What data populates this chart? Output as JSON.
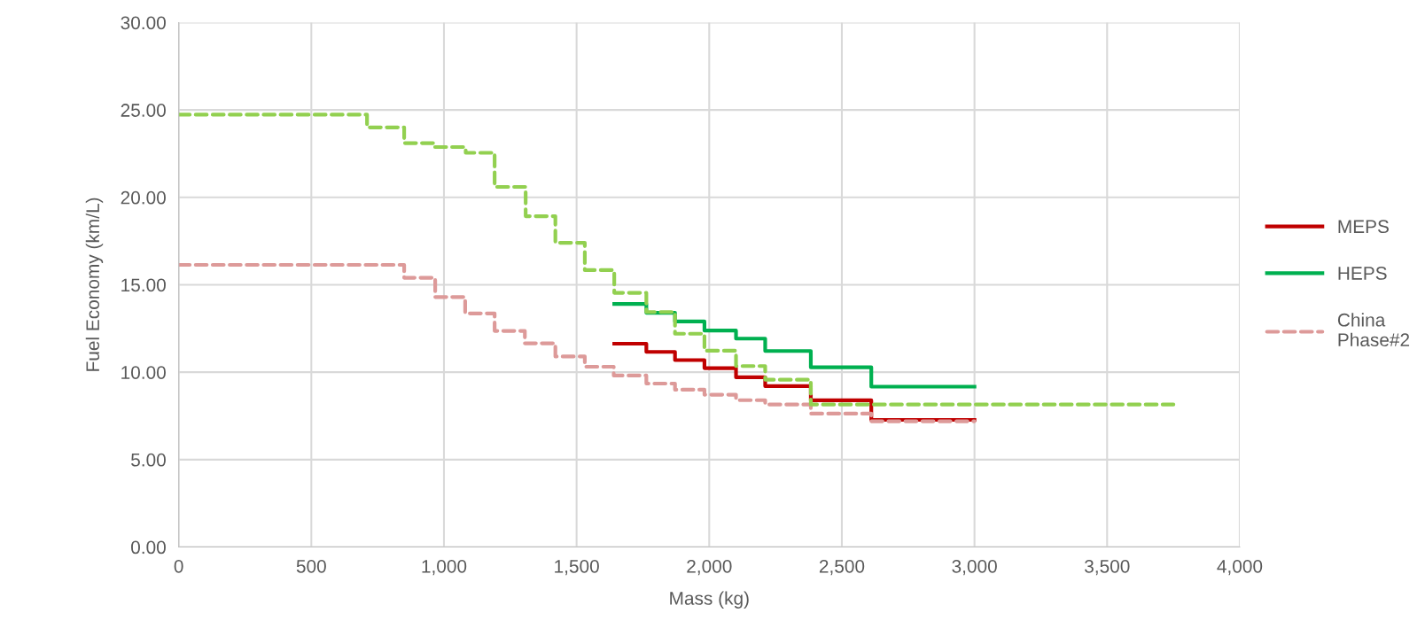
{
  "chart_data": {
    "type": "step",
    "xlabel": "Mass (kg)",
    "ylabel": "Fuel Economy (km/L)",
    "xlim": [
      0,
      4000
    ],
    "ylim": [
      0,
      30
    ],
    "xticks": [
      0,
      500,
      {
        "value": 1000,
        "label": "1,000"
      },
      {
        "value": 1500,
        "label": "1,500"
      },
      {
        "value": 2000,
        "label": "2,000"
      },
      {
        "value": 2500,
        "label": "2,500"
      },
      {
        "value": 3000,
        "label": "3,000"
      },
      {
        "value": 3500,
        "label": "3,500"
      },
      {
        "value": 4000,
        "label": "4,000"
      }
    ],
    "yticks": [
      {
        "value": 0,
        "label": "0.00"
      },
      {
        "value": 5,
        "label": "5.00"
      },
      {
        "value": 10,
        "label": "10.00"
      },
      {
        "value": 15,
        "label": "15.00"
      },
      {
        "value": 20,
        "label": "20.00"
      },
      {
        "value": 25,
        "label": "25.00"
      },
      {
        "value": 30,
        "label": "30.00"
      }
    ],
    "grid": true,
    "legend": "right",
    "marker": "none",
    "series": [
      {
        "name": "MEPS",
        "color": "#c00000",
        "line_style": "solid",
        "x": [
          1642,
          1763,
          1871,
          1982,
          2101,
          2211,
          2383,
          2611,
          3000
        ],
        "values": [
          11.63,
          11.16,
          10.69,
          10.23,
          9.71,
          9.2,
          8.39,
          7.27,
          7.27
        ]
      },
      {
        "name": "HEPS",
        "color": "#00b050",
        "line_style": "solid",
        "x": [
          1642,
          1763,
          1871,
          1982,
          2101,
          2211,
          2383,
          2611,
          3000
        ],
        "values": [
          13.9,
          13.4,
          12.9,
          12.38,
          11.92,
          11.21,
          10.28,
          9.17,
          9.17
        ]
      },
      {
        "name": "China Phase#2",
        "color": "#dd9a99",
        "line_style": "dashed",
        "x": [
          0,
          850,
          967,
          1080,
          1191,
          1305,
          1420,
          1531,
          1640,
          1763,
          1871,
          1982,
          2101,
          2211,
          2383,
          2611,
          3000
        ],
        "values": [
          16.14,
          15.4,
          14.3,
          13.36,
          12.36,
          11.65,
          10.9,
          10.31,
          9.81,
          9.35,
          9.0,
          8.71,
          8.4,
          8.15,
          7.63,
          7.19,
          7.19
        ]
      },
      {
        "color": "#92d050",
        "line_style": "dashed",
        "x": [
          0,
          710,
          850,
          963,
          1082,
          1191,
          1308,
          1420,
          1531,
          1642,
          1763,
          1871,
          1982,
          2101,
          2211,
          2383,
          3750
        ],
        "values": [
          24.73,
          24.0,
          23.1,
          22.88,
          22.55,
          20.6,
          18.92,
          17.4,
          15.84,
          14.54,
          13.44,
          12.2,
          11.23,
          10.35,
          9.57,
          8.15,
          8.15
        ]
      }
    ]
  }
}
